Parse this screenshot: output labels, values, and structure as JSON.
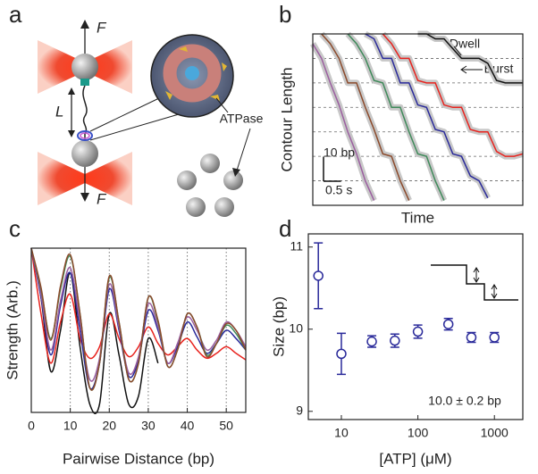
{
  "panels": [
    "a",
    "b",
    "c",
    "d"
  ],
  "diagram": {
    "force_top": "F",
    "force_bottom": "F",
    "separation": "L",
    "label": "ATPase"
  },
  "chart_data": [
    {
      "type": "line",
      "ylabel": "Contour Length",
      "xlabel": "Time",
      "annotations": [
        "Dwell",
        "Burst"
      ],
      "scale_bar": {
        "y": 10,
        "y_label": "10 bp",
        "x": 0.5,
        "x_label": "0.5 s"
      },
      "x": [
        0,
        0.25,
        0.5,
        0.75,
        1,
        1.25,
        1.5,
        1.75,
        2,
        2.25,
        2.5,
        2.75,
        3,
        3.25,
        3.5,
        3.75,
        4,
        4.25,
        4.5,
        4.75,
        5,
        5.25,
        5.5,
        5.75,
        6
      ],
      "xlim": [
        0,
        6
      ],
      "ylim": [
        0,
        70
      ],
      "ygrid": [
        10,
        20,
        30,
        40,
        50,
        60
      ],
      "band_color": "#c8c8c8",
      "series": [
        {
          "color": "#9b5fa0",
          "values": [
            66,
            60,
            50,
            41,
            30,
            21,
            10,
            2,
            null,
            null,
            null,
            null,
            null,
            null,
            null,
            null,
            null,
            null,
            null,
            null,
            null,
            null,
            null,
            null,
            null
          ]
        },
        {
          "color": "#8b4a2b",
          "values": [
            null,
            70,
            66,
            60,
            50,
            50,
            40,
            31,
            21,
            20,
            10,
            2,
            null,
            null,
            null,
            null,
            null,
            null,
            null,
            null,
            null,
            null,
            null,
            null,
            null
          ]
        },
        {
          "color": "#3f8a5a",
          "values": [
            null,
            null,
            null,
            null,
            70,
            66,
            60,
            51,
            50,
            40,
            40,
            30,
            21,
            20,
            10,
            2,
            null,
            null,
            null,
            null,
            null,
            null,
            null,
            null,
            null
          ]
        },
        {
          "color": "#2a2a9a",
          "values": [
            null,
            null,
            null,
            null,
            null,
            null,
            70,
            68,
            60,
            60,
            50,
            50,
            41,
            40,
            31,
            30,
            21,
            20,
            12,
            10,
            3,
            null,
            null,
            null,
            null
          ]
        },
        {
          "color": "#e8231e",
          "values": [
            null,
            null,
            null,
            null,
            null,
            null,
            null,
            null,
            70,
            66,
            60,
            60,
            51,
            50,
            50,
            41,
            40,
            40,
            31,
            30,
            30,
            22,
            20,
            20,
            21
          ]
        },
        {
          "color": "#111111",
          "values": [
            null,
            null,
            null,
            null,
            null,
            null,
            null,
            null,
            null,
            null,
            null,
            null,
            70,
            70,
            68,
            68,
            64,
            60,
            60,
            60,
            58,
            51,
            50,
            50,
            50
          ]
        }
      ]
    },
    {
      "type": "line",
      "ylabel": "Strength (Arb.)",
      "xlabel": "Pairwise Distance (bp)",
      "smooth": true,
      "grid": true,
      "x": [
        0,
        2.5,
        5,
        7.5,
        10,
        12.5,
        15,
        17.5,
        20,
        22.5,
        25,
        27.5,
        30,
        32.5,
        35,
        37.5,
        40,
        42.5,
        45,
        47.5,
        50,
        52.5,
        55
      ],
      "xlim": [
        0,
        55
      ],
      "ylim": [
        0,
        1
      ],
      "xticks": [
        0,
        10,
        20,
        30,
        40,
        50
      ],
      "series": [
        {
          "color": "#111111",
          "values": [
            1.0,
            0.7,
            0.25,
            0.5,
            0.85,
            0.4,
            0.05,
            0.05,
            0.6,
            0.35,
            0.05,
            0.1,
            0.45,
            0.3,
            null,
            null,
            null,
            null,
            null,
            null,
            null,
            null,
            null
          ]
        },
        {
          "color": "#e8231e",
          "values": [
            1.0,
            0.6,
            0.3,
            0.55,
            0.72,
            0.45,
            0.33,
            0.4,
            0.6,
            0.45,
            0.34,
            0.4,
            0.52,
            0.42,
            0.35,
            0.4,
            0.45,
            0.38,
            0.33,
            0.36,
            0.4,
            0.36,
            0.32
          ]
        },
        {
          "color": "#2a2a9a",
          "values": [
            1.0,
            0.7,
            0.35,
            0.65,
            0.85,
            0.5,
            0.15,
            0.3,
            0.75,
            0.5,
            0.22,
            0.32,
            0.62,
            0.5,
            0.3,
            0.4,
            0.55,
            0.46,
            0.36,
            0.42,
            0.5,
            0.45,
            0.38
          ]
        },
        {
          "color": "#9b5fa0",
          "values": [
            1.0,
            0.72,
            0.38,
            0.68,
            0.88,
            0.55,
            0.2,
            0.33,
            0.78,
            0.52,
            0.24,
            0.34,
            0.66,
            0.52,
            0.3,
            0.42,
            0.58,
            0.5,
            0.38,
            0.44,
            0.55,
            0.5,
            0.4
          ]
        },
        {
          "color": "#3f8a5a",
          "values": [
            1.0,
            0.75,
            0.45,
            0.75,
            0.95,
            0.6,
            0.15,
            0.3,
            0.82,
            0.55,
            0.2,
            0.3,
            0.7,
            0.55,
            0.28,
            0.38,
            0.6,
            0.52,
            0.35,
            0.42,
            0.53,
            0.48,
            0.38
          ]
        },
        {
          "color": "#8b4a2b",
          "values": [
            1.0,
            0.76,
            0.44,
            0.77,
            0.96,
            0.6,
            0.15,
            0.3,
            0.83,
            0.55,
            0.2,
            0.3,
            0.7,
            0.56,
            0.28,
            0.38,
            0.6,
            0.52,
            0.34,
            0.42,
            0.54,
            0.5,
            0.38
          ]
        }
      ]
    },
    {
      "type": "scatter",
      "ylabel": "Size (bp)",
      "xlabel": "[ATP] (μM)",
      "xscale": "log",
      "color": "#2a2a9a",
      "annotations": [
        "10.0 ± 0.2 bp"
      ],
      "x": [
        5,
        10,
        25,
        50,
        100,
        250,
        500,
        1000
      ],
      "values": [
        10.65,
        9.7,
        9.85,
        9.86,
        9.97,
        10.06,
        9.9,
        9.9
      ],
      "errors": [
        0.4,
        0.25,
        0.07,
        0.08,
        0.08,
        0.07,
        0.06,
        0.06
      ],
      "xlim": [
        3.7,
        2350
      ],
      "ylim": [
        8.9,
        11.16
      ],
      "xticks": [
        10,
        100,
        1000
      ],
      "yticks": [
        9,
        10,
        11
      ]
    }
  ]
}
